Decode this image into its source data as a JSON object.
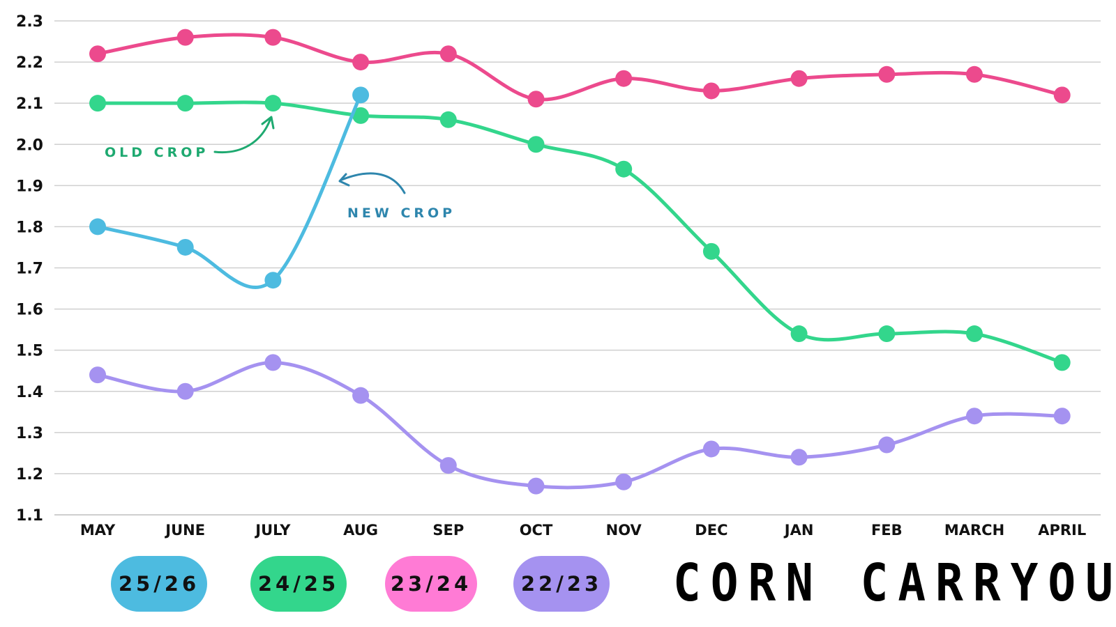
{
  "chart_data": {
    "type": "line",
    "title": "CORN CARRYOUT",
    "xlabel": "",
    "ylabel": "",
    "categories": [
      "MAY",
      "JUNE",
      "JULY",
      "AUG",
      "SEP",
      "OCT",
      "NOV",
      "DEC",
      "JAN",
      "FEB",
      "MARCH",
      "APRIL"
    ],
    "ylim": [
      1.1,
      2.3
    ],
    "yticks": [
      "2.3",
      "2.2",
      "2.1",
      "2.0",
      "1.9",
      "1.8",
      "1.7",
      "1.6",
      "1.5",
      "1.4",
      "1.3",
      "1.2",
      "1.1"
    ],
    "grid": true,
    "legend_position": "bottom-left",
    "series": [
      {
        "name": "23/24",
        "color": "#ec4a8d",
        "values": [
          2.22,
          2.26,
          2.26,
          2.2,
          2.22,
          2.11,
          2.16,
          2.13,
          2.16,
          2.17,
          2.17,
          2.12
        ]
      },
      {
        "name": "24/25",
        "color": "#33d68c",
        "values": [
          2.1,
          2.1,
          2.1,
          2.07,
          2.06,
          2.0,
          1.94,
          1.74,
          1.54,
          1.54,
          1.54,
          1.47
        ]
      },
      {
        "name": "25/26",
        "color": "#4dbbe0",
        "values": [
          1.8,
          1.75,
          1.67,
          2.12,
          null,
          null,
          null,
          null,
          null,
          null,
          null,
          null
        ]
      },
      {
        "name": "22/23",
        "color": "#a592f0",
        "values": [
          1.44,
          1.4,
          1.47,
          1.39,
          1.22,
          1.17,
          1.18,
          1.26,
          1.24,
          1.27,
          1.34,
          1.34
        ]
      }
    ],
    "annotations": [
      {
        "text": "OLD CROP",
        "color": "#1ea970",
        "points_to": "24/25"
      },
      {
        "text": "NEW CROP",
        "color": "#2e86ad",
        "points_to": "25/26"
      }
    ]
  },
  "legend": [
    {
      "label": "25/26",
      "color": "#4dbbe0"
    },
    {
      "label": "24/25",
      "color": "#33d68c"
    },
    {
      "label": "23/24",
      "color": "#ff7bd5"
    },
    {
      "label": "22/23",
      "color": "#a592f0"
    }
  ]
}
